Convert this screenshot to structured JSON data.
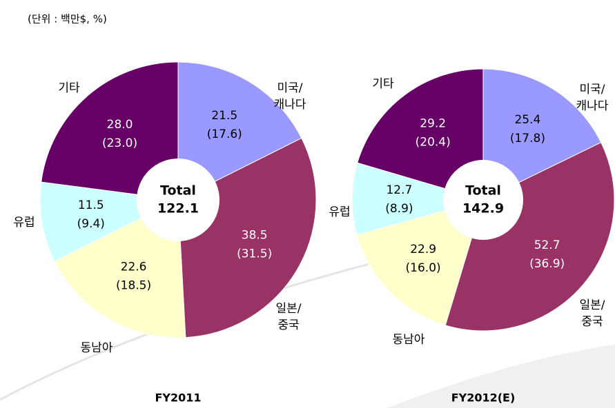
{
  "note": "(단위 : 백만$, %)",
  "chart_data": [
    {
      "type": "donut",
      "title": "FY2011",
      "center_label": "Total",
      "total": 122.1,
      "categories": [
        [
          "미국/",
          "캐나다"
        ],
        [
          "일본/",
          "중국"
        ],
        [
          "동남아"
        ],
        [
          "유럽"
        ],
        [
          "기타"
        ]
      ],
      "values": [
        21.5,
        38.5,
        22.6,
        11.5,
        28
      ],
      "value_labels": [
        "21.5",
        "38.5",
        "22.6",
        "11.5",
        "28.0"
      ],
      "percents": [
        17.6,
        31.5,
        18.5,
        9.4,
        23
      ],
      "percent_labels": [
        "(17.6)",
        "(31.5)",
        "(18.5)",
        "(9.4)",
        "(23.0)"
      ],
      "colors": [
        "#9999ff",
        "#993366",
        "#ffffcc",
        "#ccffff",
        "#660066"
      ]
    },
    {
      "type": "donut",
      "title": "FY2012(E)",
      "center_label": "Total",
      "total": 142.9,
      "categories": [
        [
          "미국/",
          "캐나다"
        ],
        [
          "일본/",
          "중국"
        ],
        [
          "동남아"
        ],
        [
          "유럽"
        ],
        [
          "기타"
        ]
      ],
      "values": [
        25.4,
        52.7,
        22.9,
        12.7,
        29.2
      ],
      "value_labels": [
        "25.4",
        "52.7",
        "22.9",
        "12.7",
        "29.2"
      ],
      "percents": [
        17.8,
        36.9,
        16,
        8.9,
        20.4
      ],
      "percent_labels": [
        "(17.8)",
        "(36.9)",
        "(16.0)",
        "(8.9)",
        "(20.4)"
      ],
      "colors": [
        "#9999ff",
        "#993366",
        "#ffffcc",
        "#ccffff",
        "#660066"
      ]
    }
  ]
}
